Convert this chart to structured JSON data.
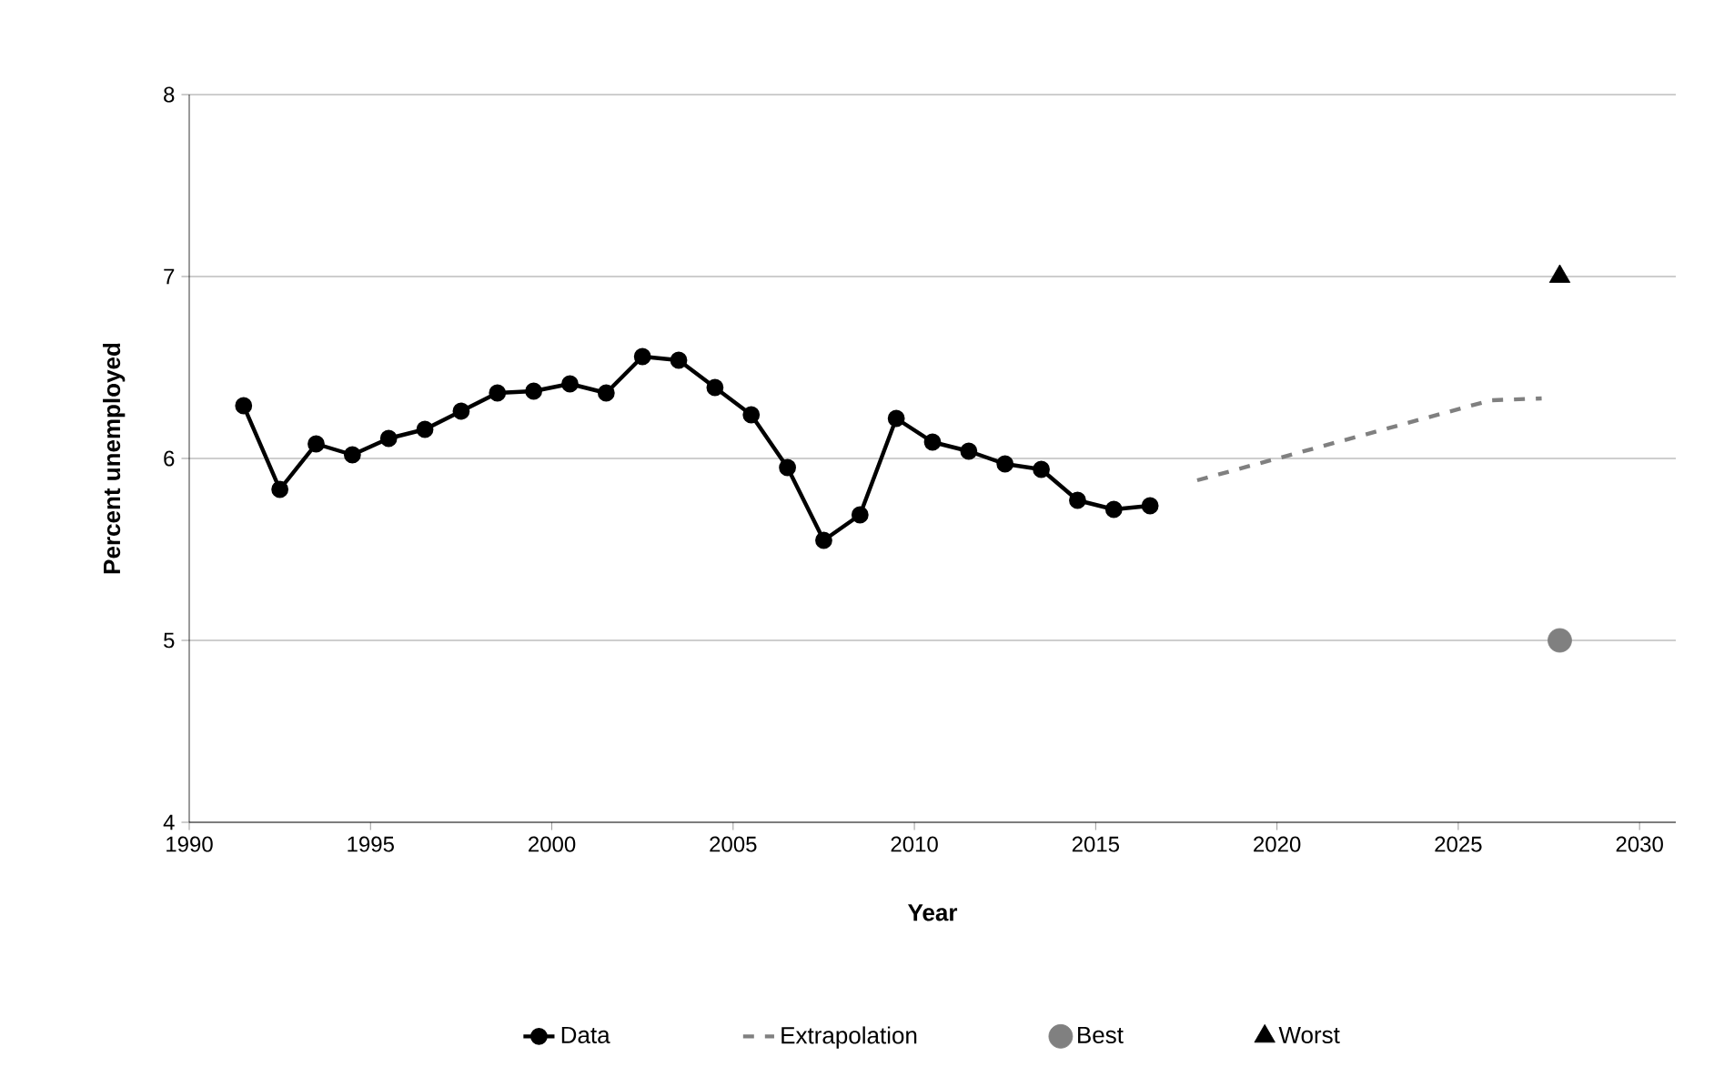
{
  "chart_data": {
    "type": "line",
    "xlabel": "Year",
    "ylabel": "Percent unemployed",
    "xlim": [
      1990,
      2031
    ],
    "xticks": [
      1990,
      1995,
      2000,
      2005,
      2010,
      2015,
      2020,
      2025,
      2030
    ],
    "ylim": [
      4,
      8
    ],
    "yticks": [
      4,
      5,
      6,
      7,
      8
    ],
    "grid": "y",
    "legend": "bottom",
    "series": [
      {
        "name": "Data",
        "color": "#000000",
        "marker": "circle",
        "line_style": "solid",
        "x": [
          1991.5,
          1992.5,
          1993.5,
          1994.5,
          1995.5,
          1996.5,
          1997.5,
          1998.5,
          1999.5,
          2000.5,
          2001.5,
          2002.5,
          2003.5,
          2004.5,
          2005.5,
          2006.5,
          2007.5,
          2008.5,
          2009.5,
          2010.5,
          2011.5,
          2012.5,
          2013.5,
          2014.5,
          2015.5,
          2016.5
        ],
        "values": [
          6.29,
          5.83,
          6.08,
          6.02,
          6.11,
          6.16,
          6.26,
          6.36,
          6.37,
          6.41,
          6.36,
          6.56,
          6.54,
          6.39,
          6.24,
          5.95,
          5.55,
          5.69,
          6.22,
          6.09,
          6.04,
          5.97,
          5.94,
          5.77,
          5.72,
          5.74
        ]
      },
      {
        "name": "Extrapolation",
        "color": "#808080",
        "marker": "none",
        "line_style": "dashed",
        "x": [
          2017.8,
          2025.9,
          2027.3
        ],
        "values": [
          5.88,
          6.32,
          6.33
        ]
      },
      {
        "name": "Best",
        "type": "scatter",
        "color": "#808080",
        "marker": "circle",
        "x": [
          2027.8
        ],
        "values": [
          5.0
        ]
      },
      {
        "name": "Worst",
        "type": "scatter",
        "color": "#000000",
        "marker": "triangle",
        "x": [
          2027.8
        ],
        "values": [
          7.0
        ]
      }
    ]
  }
}
